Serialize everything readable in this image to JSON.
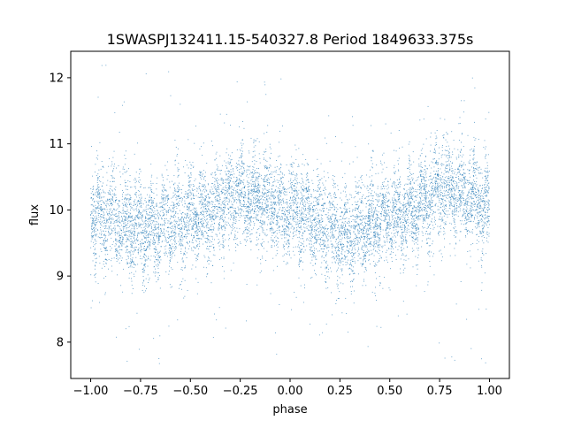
{
  "chart_data": {
    "type": "scatter",
    "title": "1SWASPJ132411.15-540327.8 Period 1849633.375s",
    "xlabel": "phase",
    "ylabel": "flux",
    "xlim": [
      -1.1,
      1.1
    ],
    "ylim": [
      7.45,
      12.4
    ],
    "xticks": [
      -1.0,
      -0.75,
      -0.5,
      -0.25,
      0.0,
      0.25,
      0.5,
      0.75,
      1.0
    ],
    "xtick_labels": [
      "−1.00",
      "−0.75",
      "−0.50",
      "−0.25",
      "0.00",
      "0.25",
      "0.50",
      "0.75",
      "1.00"
    ],
    "yticks": [
      8,
      9,
      10,
      11,
      12
    ],
    "ytick_labels": [
      "8",
      "9",
      "10",
      "11",
      "12"
    ],
    "grid": false,
    "legend": "none",
    "marker_color": "#1f77b4",
    "x_range": [
      -1.0,
      1.0
    ],
    "period_s": 1849633.375,
    "baseline_flux": 10.0,
    "flux_min": 7.65,
    "flux_max": 12.2,
    "phase_profile": {
      "x": [
        -1.0,
        -0.9,
        -0.8,
        -0.7,
        -0.6,
        -0.5,
        -0.4,
        -0.3,
        -0.2,
        -0.1,
        0.0,
        0.1,
        0.2,
        0.3,
        0.4,
        0.5,
        0.6,
        0.7,
        0.8,
        0.9,
        1.0
      ],
      "y": [
        10.0,
        9.9,
        9.75,
        9.7,
        9.8,
        9.9,
        9.95,
        10.2,
        10.2,
        10.1,
        10.0,
        9.9,
        9.7,
        9.6,
        9.8,
        9.9,
        10.0,
        10.2,
        10.3,
        10.2,
        10.1
      ]
    },
    "point_count": 9000
  }
}
